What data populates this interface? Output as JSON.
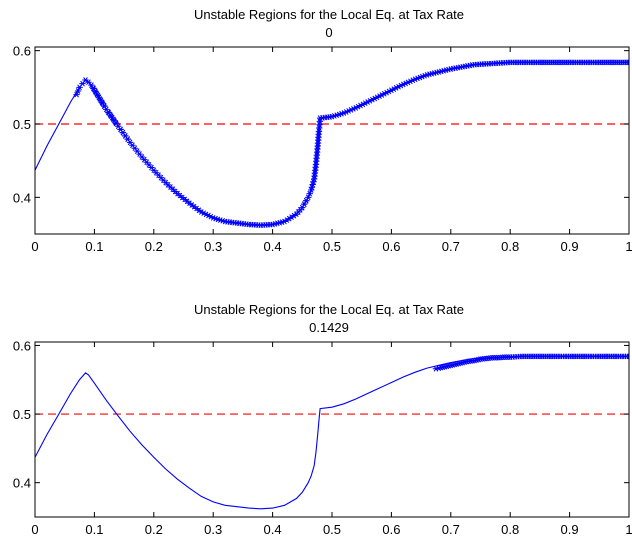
{
  "colors": {
    "series": "#0000ff",
    "reference": "#ff0000",
    "axes": "#000000",
    "background": "#ffffff"
  },
  "chart_data": [
    {
      "type": "line",
      "title": "Unstable Regions for the Local Eq. at Tax Rate",
      "subtitle": "0",
      "xlim": [
        0,
        1
      ],
      "ylim": [
        0.35,
        0.605
      ],
      "xticks": [
        "0",
        "0.1",
        "0.2",
        "0.3",
        "0.4",
        "0.5",
        "0.6",
        "0.7",
        "0.8",
        "0.9",
        "1"
      ],
      "yticks": [
        "0.4",
        "0.5",
        "0.6"
      ],
      "grid": false,
      "reference_line": {
        "y": 0.5,
        "style": "dashed",
        "color": "#ff0000"
      },
      "series": [
        {
          "style": "solid",
          "x": [
            0,
            0.02,
            0.04,
            0.06,
            0.075,
            0.085,
            0.09,
            0.1,
            0.12,
            0.14,
            0.16,
            0.18,
            0.2,
            0.22,
            0.24,
            0.26,
            0.28,
            0.3,
            0.32,
            0.34,
            0.36,
            0.38,
            0.4,
            0.42,
            0.44,
            0.45,
            0.46,
            0.465,
            0.47,
            0.473,
            0.476,
            0.478,
            0.48,
            0.5,
            0.52,
            0.54,
            0.56,
            0.58,
            0.6,
            0.62,
            0.64,
            0.66,
            0.68,
            0.7,
            0.72,
            0.74,
            0.76,
            0.78,
            0.8,
            0.85,
            0.9,
            0.95,
            1
          ],
          "y": [
            0.437,
            0.47,
            0.5,
            0.53,
            0.55,
            0.56,
            0.557,
            0.545,
            0.52,
            0.497,
            0.475,
            0.455,
            0.437,
            0.42,
            0.405,
            0.392,
            0.38,
            0.372,
            0.367,
            0.365,
            0.363,
            0.362,
            0.363,
            0.367,
            0.377,
            0.386,
            0.4,
            0.41,
            0.425,
            0.445,
            0.47,
            0.49,
            0.508,
            0.51,
            0.515,
            0.522,
            0.53,
            0.538,
            0.546,
            0.554,
            0.561,
            0.567,
            0.571,
            0.575,
            0.578,
            0.581,
            0.582,
            0.583,
            0.584,
            0.584,
            0.584,
            0.584,
            0.584
          ]
        },
        {
          "style": "markers",
          "marker": "*",
          "note_range": "x from 0.07 to 0.095 and 0.14 to 1",
          "x": [
            0.07,
            0.075,
            0.08,
            0.085,
            0.09,
            0.095,
            0.12,
            0.14,
            0.16,
            0.18,
            0.2,
            0.22,
            0.24,
            0.26,
            0.28,
            0.3,
            0.32,
            0.34,
            0.36,
            0.38,
            0.4,
            0.42,
            0.44,
            0.45,
            0.46,
            0.465,
            0.47,
            0.473,
            0.476,
            0.478,
            0.48,
            0.5,
            0.52,
            0.54,
            0.56,
            0.58,
            0.6,
            0.62,
            0.64,
            0.66,
            0.68,
            0.7,
            0.72,
            0.74,
            0.76,
            0.78,
            0.8,
            0.85,
            0.9,
            0.95,
            1
          ],
          "y": [
            0.54,
            0.55,
            0.555,
            0.56,
            0.557,
            0.553,
            0.52,
            0.497,
            0.475,
            0.455,
            0.437,
            0.42,
            0.405,
            0.392,
            0.38,
            0.372,
            0.367,
            0.365,
            0.363,
            0.362,
            0.363,
            0.367,
            0.377,
            0.386,
            0.4,
            0.41,
            0.425,
            0.445,
            0.47,
            0.49,
            0.508,
            0.51,
            0.515,
            0.522,
            0.53,
            0.538,
            0.546,
            0.554,
            0.561,
            0.567,
            0.571,
            0.575,
            0.578,
            0.581,
            0.582,
            0.583,
            0.584,
            0.584,
            0.584,
            0.584,
            0.584
          ]
        }
      ]
    },
    {
      "type": "line",
      "title": "Unstable Regions for the Local Eq. at Tax Rate",
      "subtitle": "0.1429",
      "xlim": [
        0,
        1
      ],
      "ylim": [
        0.35,
        0.605
      ],
      "xticks": [
        "0",
        "0.1",
        "0.2",
        "0.3",
        "0.4",
        "0.5",
        "0.6",
        "0.7",
        "0.8",
        "0.9",
        "1"
      ],
      "yticks": [
        "0.4",
        "0.5",
        "0.6"
      ],
      "grid": false,
      "reference_line": {
        "y": 0.5,
        "style": "dashed",
        "color": "#ff0000"
      },
      "series": [
        {
          "style": "solid",
          "x": [
            0,
            0.02,
            0.04,
            0.06,
            0.075,
            0.085,
            0.09,
            0.1,
            0.12,
            0.14,
            0.16,
            0.18,
            0.2,
            0.22,
            0.24,
            0.26,
            0.28,
            0.3,
            0.32,
            0.34,
            0.36,
            0.38,
            0.4,
            0.42,
            0.44,
            0.45,
            0.46,
            0.465,
            0.47,
            0.473,
            0.476,
            0.478,
            0.48,
            0.5,
            0.52,
            0.54,
            0.56,
            0.58,
            0.6,
            0.62,
            0.64,
            0.66,
            0.68,
            0.7,
            0.72,
            0.74,
            0.76,
            0.78,
            0.8,
            0.85,
            0.9,
            0.95,
            1
          ],
          "y": [
            0.437,
            0.47,
            0.5,
            0.53,
            0.55,
            0.56,
            0.557,
            0.545,
            0.52,
            0.497,
            0.475,
            0.455,
            0.437,
            0.42,
            0.405,
            0.392,
            0.38,
            0.372,
            0.367,
            0.365,
            0.363,
            0.362,
            0.363,
            0.367,
            0.377,
            0.386,
            0.4,
            0.41,
            0.425,
            0.445,
            0.47,
            0.49,
            0.508,
            0.51,
            0.515,
            0.522,
            0.53,
            0.538,
            0.546,
            0.554,
            0.561,
            0.567,
            0.571,
            0.575,
            0.578,
            0.581,
            0.582,
            0.583,
            0.584,
            0.584,
            0.584,
            0.584,
            0.584
          ]
        },
        {
          "style": "markers",
          "marker": "*",
          "x": [
            0.675,
            0.68,
            0.69,
            0.7,
            0.71,
            0.72,
            0.73,
            0.74,
            0.75,
            0.76,
            0.77,
            0.78,
            0.79,
            0.8,
            0.82,
            0.85,
            0.88,
            0.9,
            0.93,
            0.95,
            0.98,
            1
          ],
          "y": [
            0.566,
            0.567,
            0.569,
            0.571,
            0.573,
            0.575,
            0.577,
            0.578,
            0.58,
            0.581,
            0.582,
            0.582,
            0.583,
            0.583,
            0.584,
            0.584,
            0.584,
            0.584,
            0.584,
            0.584,
            0.584,
            0.584
          ]
        }
      ]
    }
  ]
}
